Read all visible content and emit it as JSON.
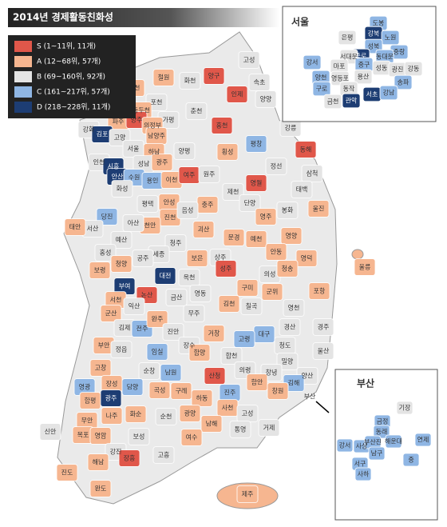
{
  "title": "2014년 경제활동친화성",
  "legend": [
    {
      "label": "S (1~11위, 11개)",
      "color": "#e0574a"
    },
    {
      "label": "A (12~68위, 57개)",
      "color": "#f6b690"
    },
    {
      "label": "B (69~160위, 92개)",
      "color": "#e4e4e4"
    },
    {
      "label": "C (161~217위, 57개)",
      "color": "#8fb6e4"
    },
    {
      "label": "D (218~228위, 11개)",
      "color": "#1d3d73"
    }
  ],
  "seoul": {
    "title": "서울",
    "regions": [
      {
        "name": "도봉",
        "color": "#8fb6e4"
      },
      {
        "name": "강북",
        "color": "#1d3d73"
      },
      {
        "name": "은평",
        "color": "#e4e4e4"
      },
      {
        "name": "노원",
        "color": "#8fb6e4"
      },
      {
        "name": "성북",
        "color": "#8fb6e4"
      },
      {
        "name": "종로",
        "color": "#1d3d73"
      },
      {
        "name": "중랑",
        "color": "#8fb6e4"
      },
      {
        "name": "동대문",
        "color": "#8fb6e4"
      },
      {
        "name": "서대문",
        "color": "#e4e4e4"
      },
      {
        "name": "강서",
        "color": "#8fb6e4"
      },
      {
        "name": "마포",
        "color": "#e4e4e4"
      },
      {
        "name": "중구",
        "color": "#8fb6e4"
      },
      {
        "name": "성동",
        "color": "#e4e4e4"
      },
      {
        "name": "광진",
        "color": "#e4e4e4"
      },
      {
        "name": "강동",
        "color": "#e4e4e4"
      },
      {
        "name": "양천",
        "color": "#8fb6e4"
      },
      {
        "name": "영등포",
        "color": "#e4e4e4"
      },
      {
        "name": "용산",
        "color": "#e4e4e4"
      },
      {
        "name": "구로",
        "color": "#8fb6e4"
      },
      {
        "name": "동작",
        "color": "#e4e4e4"
      },
      {
        "name": "송파",
        "color": "#8fb6e4"
      },
      {
        "name": "금천",
        "color": "#e4e4e4"
      },
      {
        "name": "관악",
        "color": "#1d3d73"
      },
      {
        "name": "서초",
        "color": "#1d3d73"
      },
      {
        "name": "강남",
        "color": "#8fb6e4"
      }
    ]
  },
  "busan": {
    "title": "부산",
    "regions": [
      {
        "name": "기장",
        "color": "#e4e4e4"
      },
      {
        "name": "금정",
        "color": "#8fb6e4"
      },
      {
        "name": "동래",
        "color": "#8fb6e4"
      },
      {
        "name": "해운대",
        "color": "#8fb6e4"
      },
      {
        "name": "연제",
        "color": "#8fb6e4"
      },
      {
        "name": "강서",
        "color": "#8fb6e4"
      },
      {
        "name": "사상",
        "color": "#8fb6e4"
      },
      {
        "name": "부산진",
        "color": "#8fb6e4"
      },
      {
        "name": "서구",
        "color": "#8fb6e4"
      },
      {
        "name": "사하",
        "color": "#8fb6e4"
      },
      {
        "name": "남구",
        "color": "#8fb6e4"
      },
      {
        "name": "중",
        "color": "#8fb6e4"
      }
    ]
  },
  "main": {
    "busan_label": "부산",
    "regions": [
      {
        "name": "고성",
        "color": "#e4e4e4"
      },
      {
        "name": "속초",
        "color": "#e4e4e4"
      },
      {
        "name": "양구",
        "color": "#e0574a"
      },
      {
        "name": "인제",
        "color": "#e0574a"
      },
      {
        "name": "양양",
        "color": "#e4e4e4"
      },
      {
        "name": "철원",
        "color": "#f6b690"
      },
      {
        "name": "화천",
        "color": "#e4e4e4"
      },
      {
        "name": "연천",
        "color": "#f6b690"
      },
      {
        "name": "포천",
        "color": "#e4e4e4"
      },
      {
        "name": "춘천",
        "color": "#e4e4e4"
      },
      {
        "name": "동두천",
        "color": "#f6b690"
      },
      {
        "name": "파주",
        "color": "#f6b690"
      },
      {
        "name": "양주",
        "color": "#e0574a"
      },
      {
        "name": "가평",
        "color": "#e4e4e4"
      },
      {
        "name": "의정부",
        "color": "#f6b690"
      },
      {
        "name": "남양주",
        "color": "#f6b690"
      },
      {
        "name": "홍천",
        "color": "#e0574a"
      },
      {
        "name": "강화",
        "color": "#e4e4e4"
      },
      {
        "name": "김포",
        "color": "#1d3d73"
      },
      {
        "name": "고양",
        "color": "#e4e4e4"
      },
      {
        "name": "서울",
        "color": "#e4e4e4"
      },
      {
        "name": "강릉",
        "color": "#e4e4e4"
      },
      {
        "name": "인천",
        "color": "#e4e4e4"
      },
      {
        "name": "하남",
        "color": "#f6b690"
      },
      {
        "name": "양평",
        "color": "#e4e4e4"
      },
      {
        "name": "횡성",
        "color": "#f6b690"
      },
      {
        "name": "평창",
        "color": "#8fb6e4"
      },
      {
        "name": "동해",
        "color": "#e0574a"
      },
      {
        "name": "시흥",
        "color": "#1d3d73"
      },
      {
        "name": "성남",
        "color": "#e4e4e4"
      },
      {
        "name": "광주",
        "color": "#f6b690"
      },
      {
        "name": "안산",
        "color": "#1d3d73"
      },
      {
        "name": "수원",
        "color": "#8fb6e4"
      },
      {
        "name": "용인",
        "color": "#8fb6e4"
      },
      {
        "name": "이천",
        "color": "#f6b690"
      },
      {
        "name": "여주",
        "color": "#e0574a"
      },
      {
        "name": "원주",
        "color": "#e4e4e4"
      },
      {
        "name": "정선",
        "color": "#e4e4e4"
      },
      {
        "name": "삼척",
        "color": "#e4e4e4"
      },
      {
        "name": "영월",
        "color": "#e0574a"
      },
      {
        "name": "화성",
        "color": "#e4e4e4"
      },
      {
        "name": "태백",
        "color": "#e4e4e4"
      },
      {
        "name": "안성",
        "color": "#f6b690"
      },
      {
        "name": "평택",
        "color": "#e4e4e4"
      },
      {
        "name": "제천",
        "color": "#e4e4e4"
      },
      {
        "name": "단양",
        "color": "#e4e4e4"
      },
      {
        "name": "당진",
        "color": "#8fb6e4"
      },
      {
        "name": "진천",
        "color": "#f6b690"
      },
      {
        "name": "충주",
        "color": "#f6b690"
      },
      {
        "name": "음성",
        "color": "#e4e4e4"
      },
      {
        "name": "봉화",
        "color": "#e4e4e4"
      },
      {
        "name": "울진",
        "color": "#f6b690"
      },
      {
        "name": "천안",
        "color": "#f6b690"
      },
      {
        "name": "아산",
        "color": "#e4e4e4"
      },
      {
        "name": "괴산",
        "color": "#f6b690"
      },
      {
        "name": "영주",
        "color": "#f6b690"
      },
      {
        "name": "서산",
        "color": "#e4e4e4"
      },
      {
        "name": "태안",
        "color": "#f6b690"
      },
      {
        "name": "예산",
        "color": "#e4e4e4"
      },
      {
        "name": "청주",
        "color": "#e4e4e4"
      },
      {
        "name": "문경",
        "color": "#f6b690"
      },
      {
        "name": "예천",
        "color": "#f6b690"
      },
      {
        "name": "영양",
        "color": "#f6b690"
      },
      {
        "name": "홍성",
        "color": "#e4e4e4"
      },
      {
        "name": "세종",
        "color": "#e4e4e4"
      },
      {
        "name": "상주",
        "color": "#e4e4e4"
      },
      {
        "name": "보은",
        "color": "#f6b690"
      },
      {
        "name": "안동",
        "color": "#f6b690"
      },
      {
        "name": "영덕",
        "color": "#f6b690"
      },
      {
        "name": "청양",
        "color": "#f6b690"
      },
      {
        "name": "공주",
        "color": "#e4e4e4"
      },
      {
        "name": "보령",
        "color": "#f6b690"
      },
      {
        "name": "대전",
        "color": "#1d3d73"
      },
      {
        "name": "옥천",
        "color": "#e4e4e4"
      },
      {
        "name": "성주",
        "color": "#e0574a"
      },
      {
        "name": "의성",
        "color": "#e4e4e4"
      },
      {
        "name": "청송",
        "color": "#f6b690"
      },
      {
        "name": "울릉",
        "color": "#f6b690"
      },
      {
        "name": "부여",
        "color": "#1d3d73"
      },
      {
        "name": "논산",
        "color": "#e0574a"
      },
      {
        "name": "구미",
        "color": "#f6b690"
      },
      {
        "name": "군위",
        "color": "#f6b690"
      },
      {
        "name": "영천",
        "color": "#e4e4e4"
      },
      {
        "name": "포항",
        "color": "#f6b690"
      },
      {
        "name": "서천",
        "color": "#f6b690"
      },
      {
        "name": "금산",
        "color": "#e4e4e4"
      },
      {
        "name": "영동",
        "color": "#e4e4e4"
      },
      {
        "name": "김천",
        "color": "#f6b690"
      },
      {
        "name": "칠곡",
        "color": "#e4e4e4"
      },
      {
        "name": "군산",
        "color": "#f6b690"
      },
      {
        "name": "익산",
        "color": "#e4e4e4"
      },
      {
        "name": "무주",
        "color": "#e4e4e4"
      },
      {
        "name": "대구",
        "color": "#8fb6e4"
      },
      {
        "name": "경주",
        "color": "#e4e4e4"
      },
      {
        "name": "김제",
        "color": "#e4e4e4"
      },
      {
        "name": "전주",
        "color": "#8fb6e4"
      },
      {
        "name": "완주",
        "color": "#f6b690"
      },
      {
        "name": "진안",
        "color": "#e4e4e4"
      },
      {
        "name": "거창",
        "color": "#f6b690"
      },
      {
        "name": "고령",
        "color": "#8fb6e4"
      },
      {
        "name": "경산",
        "color": "#e4e4e4"
      },
      {
        "name": "청도",
        "color": "#e4e4e4"
      },
      {
        "name": "울산",
        "color": "#e4e4e4"
      },
      {
        "name": "부안",
        "color": "#f6b690"
      },
      {
        "name": "정읍",
        "color": "#e4e4e4"
      },
      {
        "name": "임실",
        "color": "#8fb6e4"
      },
      {
        "name": "장수",
        "color": "#e4e4e4"
      },
      {
        "name": "합천",
        "color": "#e4e4e4"
      },
      {
        "name": "함양",
        "color": "#f6b690"
      },
      {
        "name": "밀양",
        "color": "#e4e4e4"
      },
      {
        "name": "고창",
        "color": "#f6b690"
      },
      {
        "name": "순창",
        "color": "#e4e4e4"
      },
      {
        "name": "남원",
        "color": "#8fb6e4"
      },
      {
        "name": "산청",
        "color": "#e0574a"
      },
      {
        "name": "의령",
        "color": "#e4e4e4"
      },
      {
        "name": "창녕",
        "color": "#e4e4e4"
      },
      {
        "name": "양산",
        "color": "#e4e4e4"
      },
      {
        "name": "김해",
        "color": "#8fb6e4"
      },
      {
        "name": "영광",
        "color": "#8fb6e4"
      },
      {
        "name": "장성",
        "color": "#f6b690"
      },
      {
        "name": "담양",
        "color": "#8fb6e4"
      },
      {
        "name": "곡성",
        "color": "#f6b690"
      },
      {
        "name": "구례",
        "color": "#f6b690"
      },
      {
        "name": "하동",
        "color": "#f6b690"
      },
      {
        "name": "진주",
        "color": "#8fb6e4"
      },
      {
        "name": "함안",
        "color": "#f6b690"
      },
      {
        "name": "창원",
        "color": "#f6b690"
      },
      {
        "name": "함평",
        "color": "#f6b690"
      },
      {
        "name": "광주",
        "color": "#1d3d73"
      },
      {
        "name": "화순",
        "color": "#f6b690"
      },
      {
        "name": "사천",
        "color": "#f6b690"
      },
      {
        "name": "고성",
        "color": "#e4e4e4"
      },
      {
        "name": "통영",
        "color": "#e4e4e4"
      },
      {
        "name": "무안",
        "color": "#f6b690"
      },
      {
        "name": "나주",
        "color": "#f6b690"
      },
      {
        "name": "순천",
        "color": "#e4e4e4"
      },
      {
        "name": "광양",
        "color": "#f6b690"
      },
      {
        "name": "남해",
        "color": "#f6b690"
      },
      {
        "name": "거제",
        "color": "#e4e4e4"
      },
      {
        "name": "신안",
        "color": "#e4e4e4"
      },
      {
        "name": "목포",
        "color": "#f6b690"
      },
      {
        "name": "영암",
        "color": "#f6b690"
      },
      {
        "name": "보성",
        "color": "#e4e4e4"
      },
      {
        "name": "여수",
        "color": "#f6b690"
      },
      {
        "name": "강진",
        "color": "#e4e4e4"
      },
      {
        "name": "장흥",
        "color": "#e0574a"
      },
      {
        "name": "고흥",
        "color": "#e4e4e4"
      },
      {
        "name": "해남",
        "color": "#f6b690"
      },
      {
        "name": "진도",
        "color": "#f6b690"
      },
      {
        "name": "완도",
        "color": "#f6b690"
      },
      {
        "name": "제주",
        "color": "#f6b690"
      }
    ]
  }
}
